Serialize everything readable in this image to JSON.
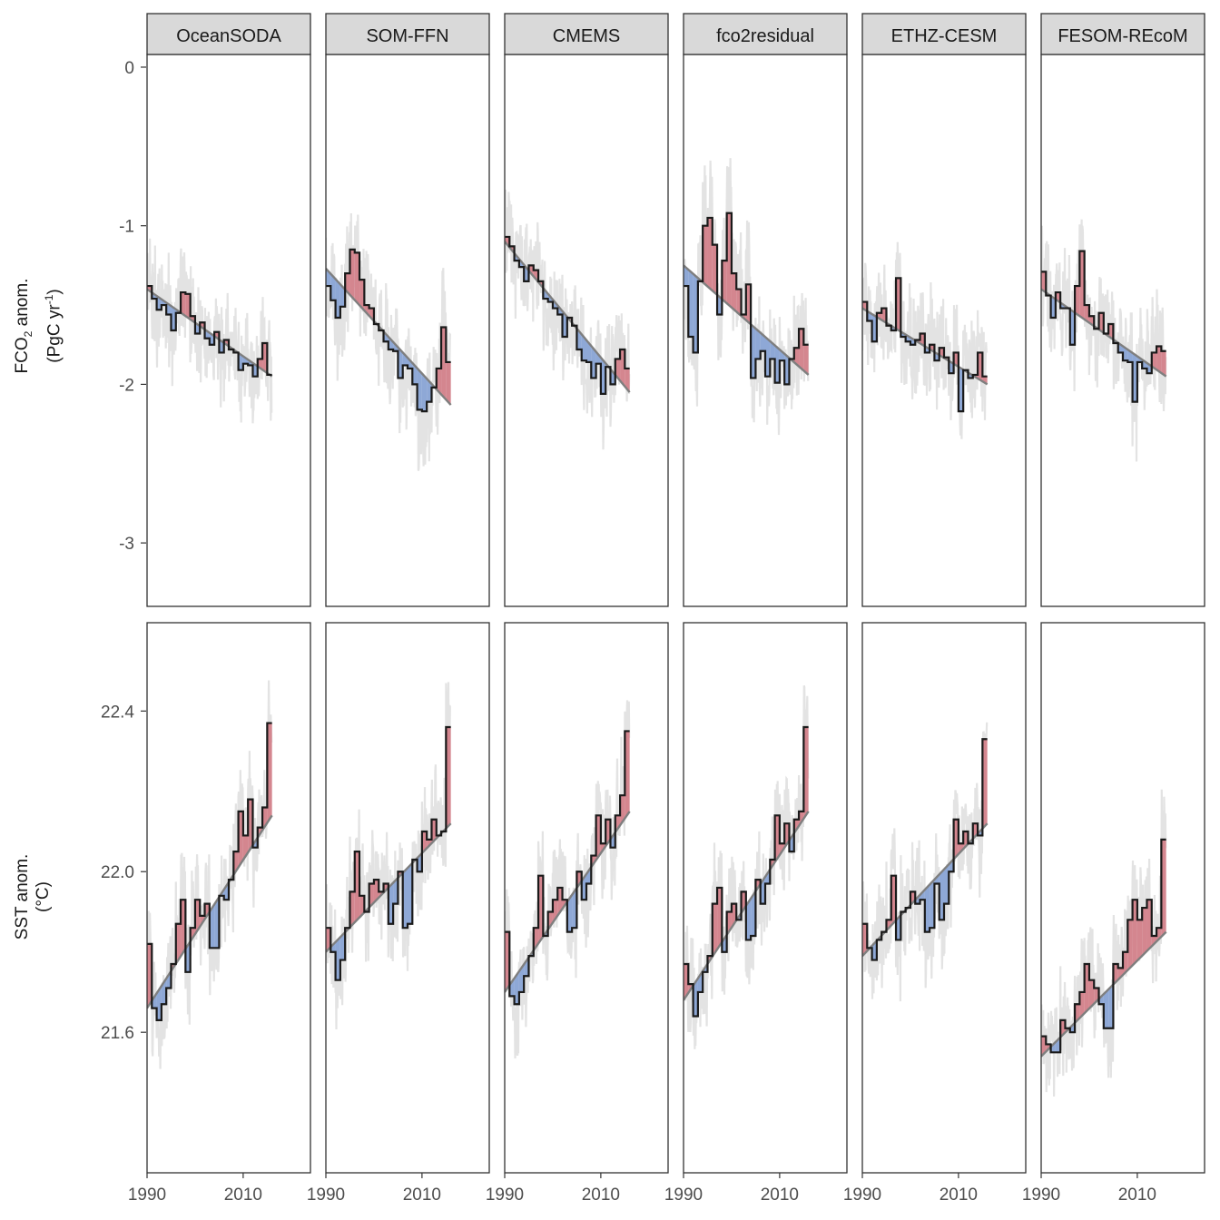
{
  "colors": {
    "raw_line": "#e3e3e3",
    "trend_line": "#7f7f7f",
    "positive_fill": "#d4868f",
    "negative_fill": "#8ea8d6",
    "annual_line": "#1a1a1a",
    "strip_fill": "#d9d9d9",
    "panel_border": "#333333",
    "tick_text": "#4d4d4d"
  },
  "chart_data": {
    "type": "line",
    "facets": [
      "OceanSODA",
      "SOM-FFN",
      "CMEMS",
      "fco2residual",
      "ETHZ-CESM",
      "FESOM-REcoM"
    ],
    "x_ticks": [
      "1990",
      "2010"
    ],
    "xlim": [
      1990,
      2024
    ],
    "rows": [
      {
        "id": "fco2",
        "ylabel_main": "FCO",
        "ylabel_sub": "2",
        "ylabel_rest": " anom.",
        "ylabel_line2_pre": "(PgC yr",
        "ylabel_sup": "-1",
        "ylabel_line2_post": ")",
        "ylim": [
          -3.4,
          0.08
        ],
        "y_ticks": [
          "0",
          "-1",
          "-2",
          "-3"
        ],
        "y_tick_values": [
          0,
          -1,
          -2,
          -3
        ],
        "noise": 0.42,
        "series": [
          {
            "facet": "OceanSODA",
            "start": 1990,
            "trend": [
              -1.4,
              -1.95
            ],
            "annual": [
              -1.38,
              -1.46,
              -1.53,
              -1.5,
              -1.56,
              -1.66,
              -1.55,
              -1.42,
              -1.43,
              -1.57,
              -1.68,
              -1.61,
              -1.71,
              -1.75,
              -1.67,
              -1.8,
              -1.72,
              -1.78,
              -1.8,
              -1.91,
              -1.87,
              -1.88,
              -1.95,
              -1.84,
              -1.74,
              -1.94
            ]
          },
          {
            "facet": "SOM-FFN",
            "start": 1990,
            "trend": [
              -1.27,
              -2.13
            ],
            "annual": [
              -1.38,
              -1.47,
              -1.58,
              -1.51,
              -1.3,
              -1.15,
              -1.17,
              -1.34,
              -1.5,
              -1.52,
              -1.62,
              -1.66,
              -1.73,
              -1.78,
              -1.79,
              -1.96,
              -1.88,
              -1.9,
              -2.0,
              -2.16,
              -2.17,
              -2.11,
              -2.02,
              -1.9,
              -1.64,
              -1.86
            ]
          },
          {
            "facet": "CMEMS",
            "start": 1990,
            "trend": [
              -1.1,
              -2.05
            ],
            "annual": [
              -1.07,
              -1.13,
              -1.22,
              -1.26,
              -1.35,
              -1.25,
              -1.28,
              -1.35,
              -1.46,
              -1.48,
              -1.52,
              -1.56,
              -1.7,
              -1.58,
              -1.63,
              -1.78,
              -1.85,
              -1.86,
              -1.96,
              -1.87,
              -2.06,
              -1.89,
              -2.0,
              -1.84,
              -1.78,
              -1.9
            ]
          },
          {
            "facet": "fco2residual",
            "start": 1990,
            "trend": [
              -1.25,
              -1.94
            ],
            "annual": [
              -1.38,
              -1.7,
              -1.8,
              -1.35,
              -1.0,
              -0.95,
              -1.12,
              -1.56,
              -1.22,
              -0.92,
              -1.3,
              -1.4,
              -1.56,
              -1.37,
              -1.96,
              -1.84,
              -1.79,
              -1.95,
              -1.84,
              -1.99,
              -1.85,
              -2.0,
              -1.84,
              -1.77,
              -1.65,
              -1.75
            ]
          },
          {
            "facet": "ETHZ-CESM",
            "start": 1990,
            "trend": [
              -1.52,
              -2.0
            ],
            "annual": [
              -1.48,
              -1.6,
              -1.73,
              -1.55,
              -1.52,
              -1.63,
              -1.66,
              -1.33,
              -1.7,
              -1.73,
              -1.75,
              -1.72,
              -1.68,
              -1.8,
              -1.75,
              -1.85,
              -1.77,
              -1.83,
              -1.93,
              -1.8,
              -2.17,
              -1.91,
              -1.96,
              -1.94,
              -1.8,
              -1.95
            ]
          },
          {
            "facet": "FESOM-REcoM",
            "start": 1990,
            "trend": [
              -1.4,
              -1.95
            ],
            "annual": [
              -1.29,
              -1.44,
              -1.58,
              -1.42,
              -1.52,
              -1.52,
              -1.75,
              -1.38,
              -1.16,
              -1.5,
              -1.57,
              -1.65,
              -1.55,
              -1.68,
              -1.62,
              -1.74,
              -1.8,
              -1.85,
              -1.86,
              -2.11,
              -1.86,
              -1.9,
              -1.93,
              -1.8,
              -1.76,
              -1.79
            ]
          }
        ]
      },
      {
        "id": "sst",
        "ylabel_main": "SST anom.",
        "ylabel_line2": "(°C)",
        "ylim": [
          21.25,
          22.62
        ],
        "y_ticks": [
          "22.4",
          "22.0",
          "21.6"
        ],
        "y_tick_values": [
          22.4,
          22.0,
          21.6
        ],
        "noise": 0.16,
        "series": [
          {
            "facet": "OceanSODA",
            "start": 1990,
            "trend": [
              21.66,
              22.14
            ],
            "annual": [
              21.82,
              21.66,
              21.63,
              21.67,
              21.71,
              21.77,
              21.87,
              21.93,
              21.75,
              21.86,
              21.93,
              21.89,
              21.92,
              21.81,
              21.81,
              21.94,
              21.93,
              21.98,
              22.05,
              22.15,
              22.09,
              22.18,
              22.06,
              22.11,
              22.16,
              22.37
            ]
          },
          {
            "facet": "SOM-FFN",
            "start": 1990,
            "trend": [
              21.8,
              22.12
            ],
            "annual": [
              21.86,
              21.8,
              21.73,
              21.78,
              21.86,
              21.95,
              22.05,
              21.94,
              21.9,
              21.97,
              21.98,
              21.95,
              21.97,
              21.87,
              21.92,
              22.0,
              21.86,
              21.87,
              22.03,
              22.0,
              22.1,
              22.08,
              22.13,
              22.09,
              22.1,
              22.36
            ]
          },
          {
            "facet": "CMEMS",
            "start": 1990,
            "trend": [
              21.7,
              22.15
            ],
            "annual": [
              21.85,
              21.69,
              21.67,
              21.7,
              21.74,
              21.79,
              21.86,
              21.99,
              21.84,
              21.9,
              21.93,
              21.96,
              21.93,
              21.85,
              21.86,
              22.0,
              21.93,
              21.97,
              22.04,
              22.14,
              22.07,
              22.13,
              22.06,
              22.14,
              22.19,
              22.35
            ]
          },
          {
            "facet": "fco2residual",
            "start": 1990,
            "trend": [
              21.68,
              22.15
            ],
            "annual": [
              21.77,
              21.72,
              21.64,
              21.7,
              21.75,
              21.79,
              21.92,
              21.96,
              21.8,
              21.9,
              21.92,
              21.88,
              21.95,
              21.83,
              21.84,
              21.98,
              21.92,
              21.97,
              22.03,
              22.14,
              22.07,
              22.12,
              22.05,
              22.13,
              22.15,
              22.36
            ]
          },
          {
            "facet": "ETHZ-CESM",
            "start": 1990,
            "trend": [
              21.79,
              22.12
            ],
            "annual": [
              21.87,
              21.81,
              21.78,
              21.83,
              21.85,
              21.88,
              21.99,
              21.83,
              21.9,
              21.91,
              21.95,
              21.92,
              21.93,
              21.85,
              21.86,
              21.97,
              21.88,
              21.92,
              22.0,
              22.13,
              22.07,
              22.1,
              22.07,
              22.12,
              22.09,
              22.33
            ]
          },
          {
            "facet": "FESOM-REcoM",
            "start": 1990,
            "trend": [
              21.54,
              21.85
            ],
            "annual": [
              21.59,
              21.57,
              21.55,
              21.55,
              21.63,
              21.61,
              21.6,
              21.67,
              21.7,
              21.77,
              21.73,
              21.71,
              21.67,
              21.61,
              21.61,
              21.77,
              21.76,
              21.8,
              21.88,
              21.93,
              21.88,
              21.91,
              21.93,
              21.84,
              21.86,
              22.08
            ]
          }
        ]
      }
    ]
  }
}
